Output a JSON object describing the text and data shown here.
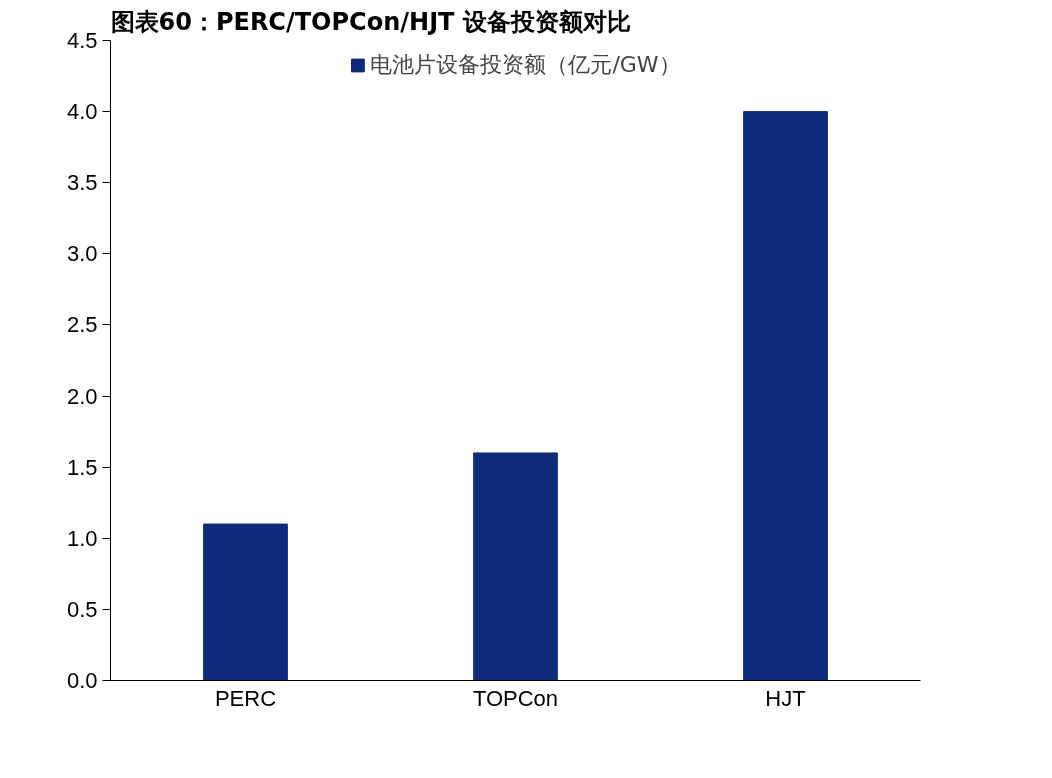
{
  "chart_data": {
    "type": "bar",
    "title": "图表60：PERC/TOPCon/HJT 设备投资额对比",
    "categories": [
      "PERC",
      "TOPCon",
      "HJT"
    ],
    "series": [
      {
        "name": "电池片设备投资额（亿元/GW）",
        "color": "#0e2a78",
        "values": [
          1.1,
          1.6,
          4.0
        ]
      }
    ],
    "ylim": [
      0,
      4.5
    ],
    "yticks": [
      {
        "value": 0,
        "label": "0.0"
      },
      {
        "value": 0.5,
        "label": "0.5"
      },
      {
        "value": 1,
        "label": "1.0"
      },
      {
        "value": 1.5,
        "label": "1.5"
      },
      {
        "value": 2,
        "label": "2.0"
      },
      {
        "value": 2.5,
        "label": "2.5"
      },
      {
        "value": 3,
        "label": "3.0"
      },
      {
        "value": 3.5,
        "label": "3.5"
      },
      {
        "value": 4,
        "label": "4.0"
      },
      {
        "value": 4.5,
        "label": "4.5"
      }
    ],
    "grid": false,
    "legend": "top"
  }
}
